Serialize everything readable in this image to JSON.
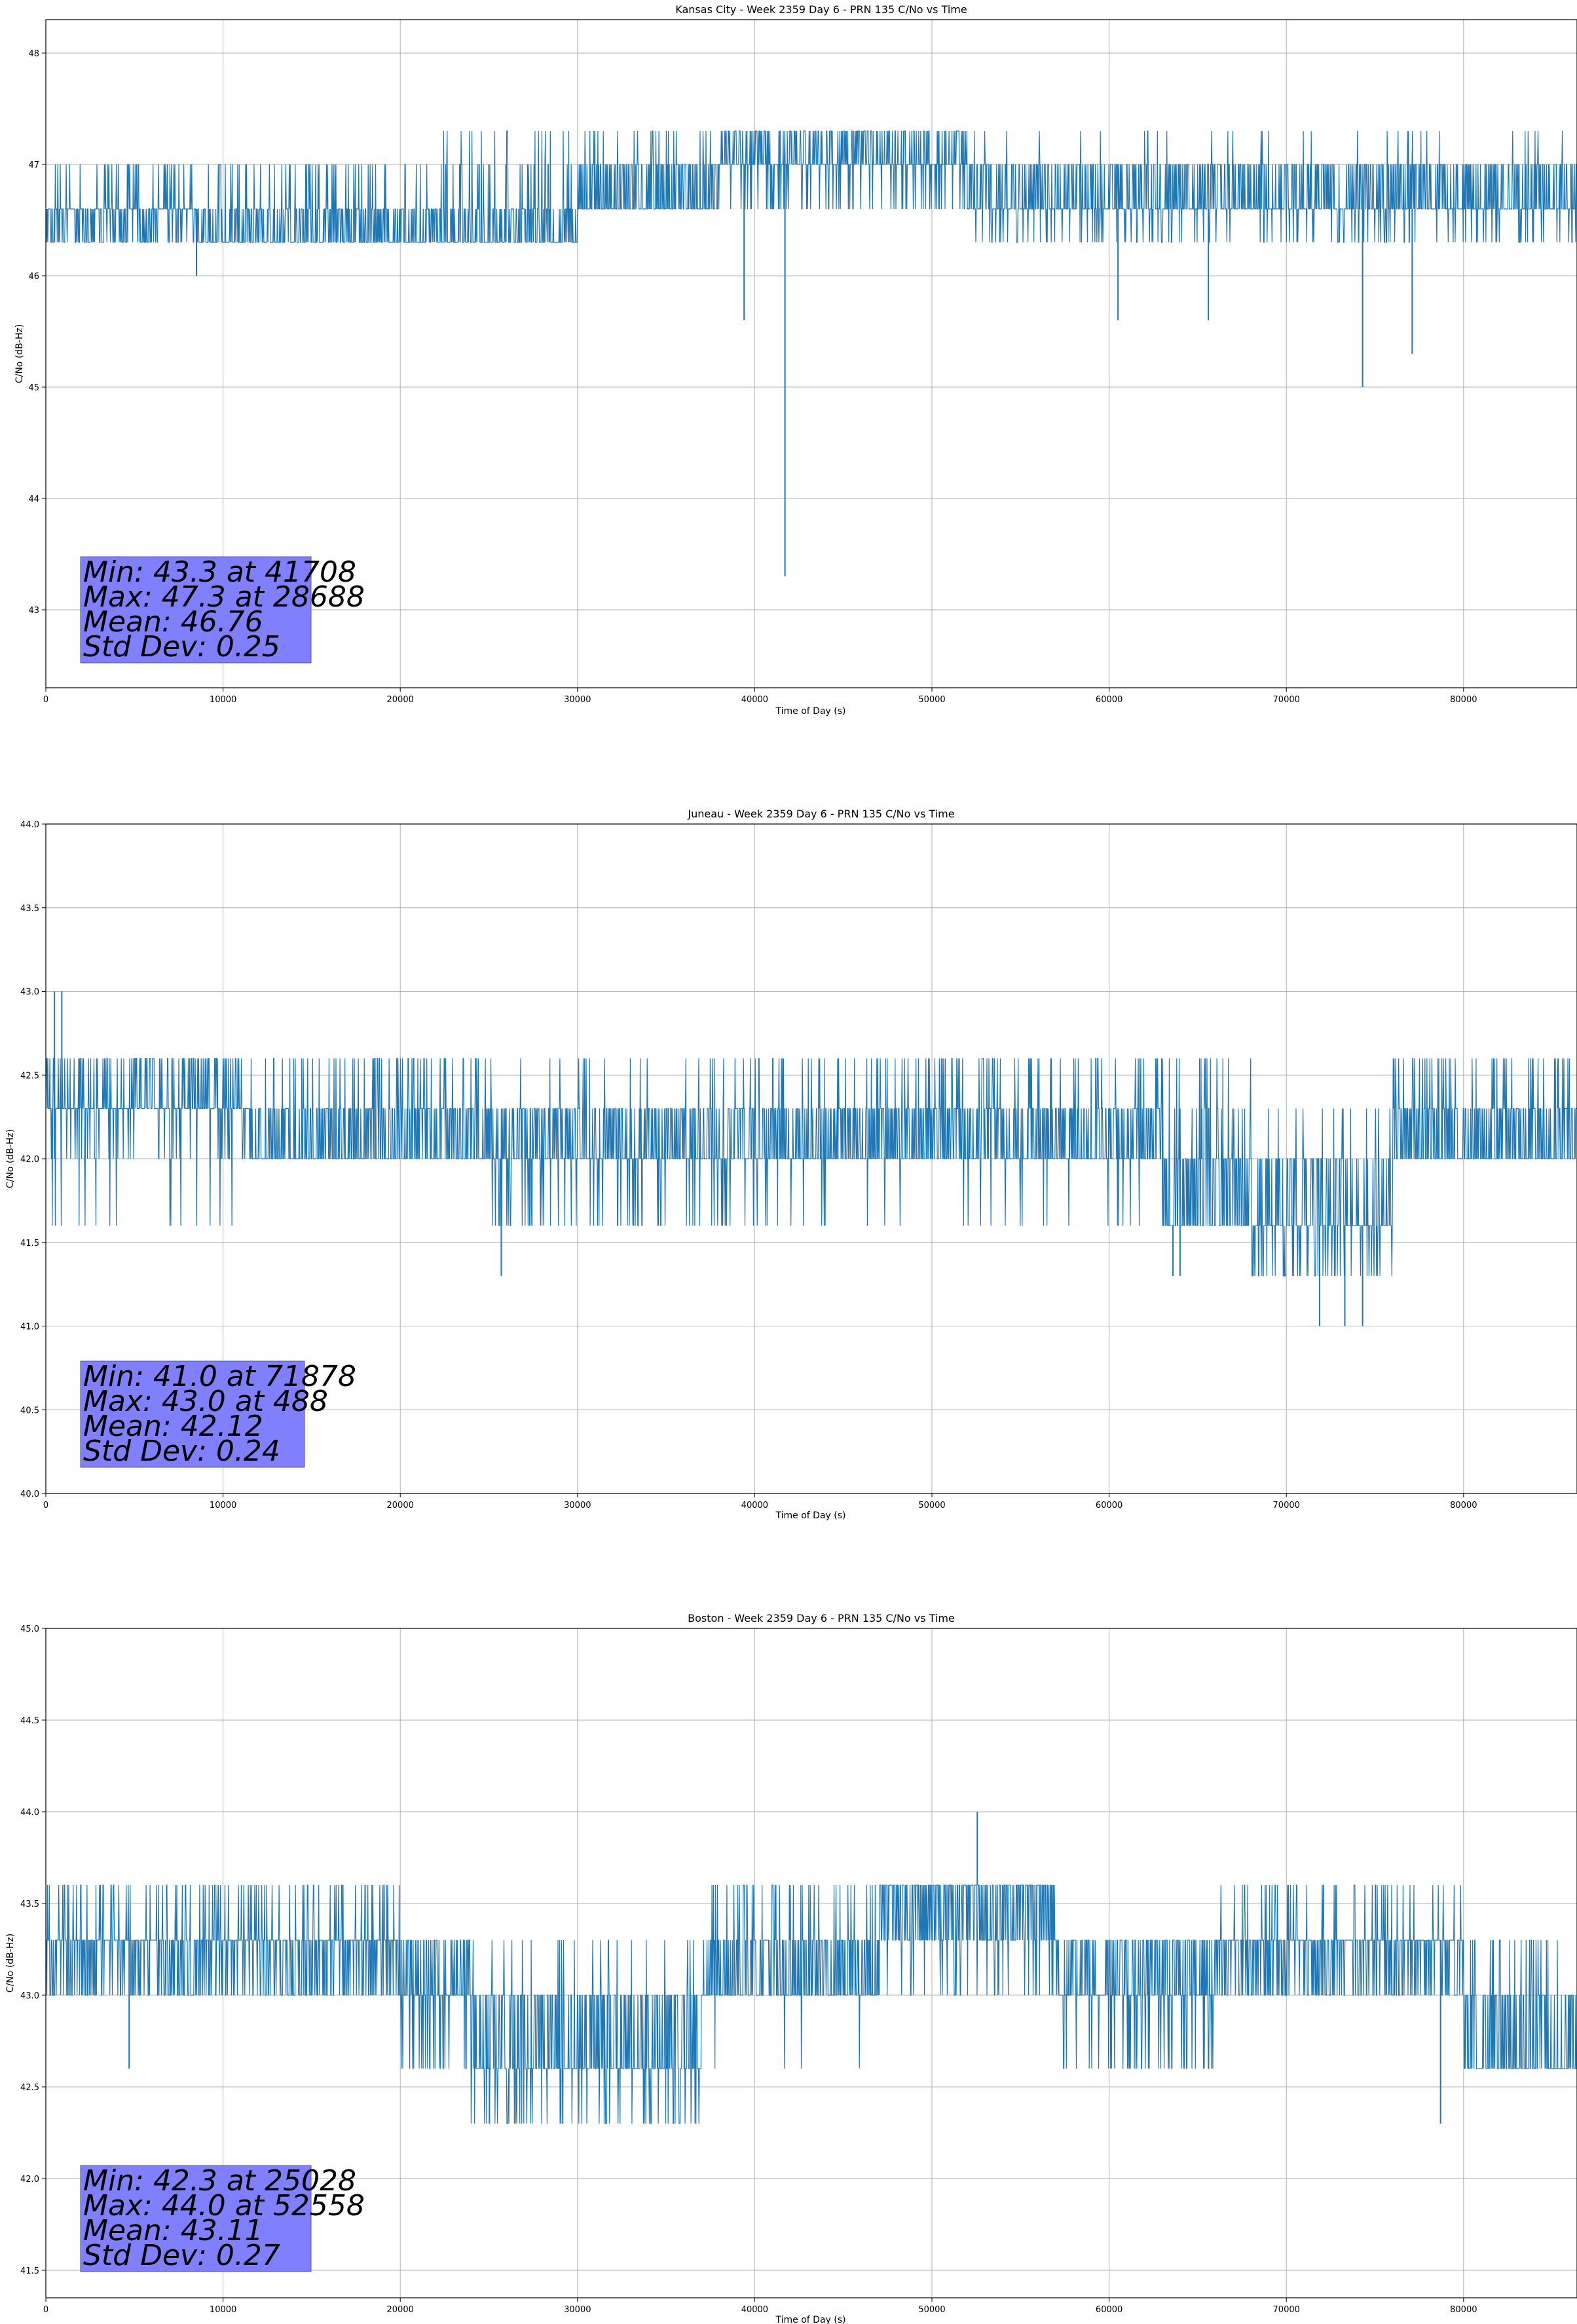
{
  "chart_data": [
    {
      "type": "line",
      "title": "Kansas City - Week 2359 Day 6 - PRN 135 C/No vs Time",
      "xlabel": "Time of Day (s)",
      "ylabel": "C/No (dB-Hz)",
      "xlim": [
        0,
        86400
      ],
      "ylim": [
        42.3,
        48.3
      ],
      "xticks": [
        0,
        10000,
        20000,
        30000,
        40000,
        50000,
        60000,
        70000,
        80000
      ],
      "yticks": [
        43,
        44,
        45,
        46,
        47,
        48
      ],
      "xtick_labels": [
        "0",
        "10000",
        "20000",
        "30000",
        "40000",
        "50000",
        "60000",
        "70000",
        "80000"
      ],
      "ytick_labels": [
        "43",
        "44",
        "45",
        "46",
        "47",
        "48"
      ],
      "grid": true,
      "series": [
        {
          "name": "C/No",
          "color": "#1f77b4",
          "segments": [
            {
              "x0": 0,
              "x1": 8500,
              "levels": [
                46.6,
                46.3,
                47.0
              ],
              "spikes": [
                [
                  8500,
                  46.0
                ]
              ]
            },
            {
              "x0": 8500,
              "x1": 22000,
              "levels": [
                46.3,
                46.6,
                47.0
              ]
            },
            {
              "x0": 22000,
              "x1": 30000,
              "levels": [
                46.3,
                46.6,
                47.0,
                47.3
              ]
            },
            {
              "x0": 30000,
              "x1": 38000,
              "levels": [
                46.6,
                47.0,
                47.3
              ]
            },
            {
              "x0": 38000,
              "x1": 52000,
              "levels": [
                47.0,
                47.3,
                46.6
              ],
              "spikes": [
                [
                  39400,
                  45.6
                ],
                [
                  41708,
                  43.3
                ]
              ]
            },
            {
              "x0": 52000,
              "x1": 86400,
              "levels": [
                46.6,
                47.0,
                46.3,
                47.3
              ],
              "spikes": [
                [
                  60500,
                  45.6
                ],
                [
                  65600,
                  45.6
                ],
                [
                  74300,
                  45.0
                ],
                [
                  77100,
                  45.3
                ]
              ]
            }
          ]
        }
      ],
      "stats": [
        "Min: 43.3 at 41708",
        "Max: 47.3 at 28688",
        "Mean: 46.76",
        "Std Dev: 0.25"
      ]
    },
    {
      "type": "line",
      "title": "Juneau - Week 2359 Day 6 - PRN 135 C/No vs Time",
      "xlabel": "Time of Day (s)",
      "ylabel": "C/No (dB-Hz)",
      "xlim": [
        0,
        86400
      ],
      "ylim": [
        40.0,
        44.0
      ],
      "xticks": [
        0,
        10000,
        20000,
        30000,
        40000,
        50000,
        60000,
        70000,
        80000
      ],
      "yticks": [
        40.0,
        40.5,
        41.0,
        41.5,
        42.0,
        42.5,
        43.0,
        43.5,
        44.0
      ],
      "xtick_labels": [
        "0",
        "10000",
        "20000",
        "30000",
        "40000",
        "50000",
        "60000",
        "70000",
        "80000"
      ],
      "ytick_labels": [
        "40.0",
        "40.5",
        "41.0",
        "41.5",
        "42.0",
        "42.5",
        "43.0",
        "43.5",
        "44.0"
      ],
      "grid": true,
      "series": [
        {
          "name": "C/No",
          "color": "#1f77b4",
          "segments": [
            {
              "x0": 0,
              "x1": 11500,
              "levels": [
                42.3,
                42.6,
                42.0,
                41.6
              ],
              "spikes": [
                [
                  488,
                  43.0
                ],
                [
                  900,
                  43.0
                ]
              ]
            },
            {
              "x0": 11500,
              "x1": 25000,
              "levels": [
                42.0,
                42.3,
                42.6
              ]
            },
            {
              "x0": 25000,
              "x1": 40000,
              "levels": [
                42.0,
                42.3,
                41.6,
                42.6
              ],
              "spikes": [
                [
                  25700,
                  41.3
                ]
              ]
            },
            {
              "x0": 40000,
              "x1": 63000,
              "levels": [
                42.0,
                42.3,
                42.6,
                41.6
              ]
            },
            {
              "x0": 63000,
              "x1": 68000,
              "levels": [
                41.6,
                42.0,
                42.3,
                42.6
              ],
              "spikes": [
                [
                  63600,
                  41.3
                ],
                [
                  64000,
                  41.3
                ]
              ]
            },
            {
              "x0": 68000,
              "x1": 76000,
              "levels": [
                41.6,
                42.0,
                41.3,
                42.3
              ],
              "spikes": [
                [
                  71878,
                  41.0
                ],
                [
                  73300,
                  41.0
                ],
                [
                  74300,
                  41.0
                ]
              ]
            },
            {
              "x0": 76000,
              "x1": 86400,
              "levels": [
                42.0,
                42.3,
                42.6
              ]
            }
          ]
        }
      ],
      "stats": [
        "Min: 41.0 at 71878",
        "Max: 43.0 at 488",
        "Mean: 42.12",
        "Std Dev: 0.24"
      ]
    },
    {
      "type": "line",
      "title": "Boston - Week 2359 Day 6 - PRN 135 C/No vs Time",
      "xlabel": "Time of Day (s)",
      "ylabel": "C/No (dB-Hz)",
      "xlim": [
        0,
        86400
      ],
      "ylim": [
        41.35,
        45.0
      ],
      "xticks": [
        0,
        10000,
        20000,
        30000,
        40000,
        50000,
        60000,
        70000,
        80000
      ],
      "yticks": [
        41.5,
        42.0,
        42.5,
        43.0,
        43.5,
        44.0,
        44.5,
        45.0
      ],
      "xtick_labels": [
        "0",
        "10000",
        "20000",
        "30000",
        "40000",
        "50000",
        "60000",
        "70000",
        "80000"
      ],
      "ytick_labels": [
        "41.5",
        "42.0",
        "42.5",
        "43.0",
        "43.5",
        "44.0",
        "44.5",
        "45.0"
      ],
      "grid": true,
      "series": [
        {
          "name": "C/No",
          "color": "#1f77b4",
          "segments": [
            {
              "x0": 0,
              "x1": 20000,
              "levels": [
                43.3,
                43.0,
                43.6
              ],
              "spikes": [
                [
                  4700,
                  42.6
                ]
              ]
            },
            {
              "x0": 20000,
              "x1": 24000,
              "levels": [
                43.0,
                43.3,
                42.6
              ]
            },
            {
              "x0": 24000,
              "x1": 37000,
              "levels": [
                42.6,
                43.0,
                42.3,
                43.3
              ],
              "spikes": [
                [
                  25028,
                  42.3
                ]
              ]
            },
            {
              "x0": 37000,
              "x1": 47000,
              "levels": [
                43.0,
                43.3,
                43.6,
                42.6
              ]
            },
            {
              "x0": 47000,
              "x1": 57000,
              "levels": [
                43.6,
                43.3,
                43.0
              ],
              "spikes": [
                [
                  52558,
                  44.0
                ]
              ]
            },
            {
              "x0": 57000,
              "x1": 66000,
              "levels": [
                43.0,
                43.3,
                42.6
              ]
            },
            {
              "x0": 66000,
              "x1": 80000,
              "levels": [
                43.3,
                43.0,
                43.6
              ],
              "spikes": [
                [
                  78700,
                  42.3
                ]
              ]
            },
            {
              "x0": 80000,
              "x1": 86400,
              "levels": [
                42.6,
                43.0,
                43.3
              ]
            }
          ]
        }
      ],
      "stats": [
        "Min: 42.3 at 25028",
        "Max: 44.0 at 52558",
        "Mean: 43.11",
        "Std Dev: 0.27"
      ]
    }
  ]
}
